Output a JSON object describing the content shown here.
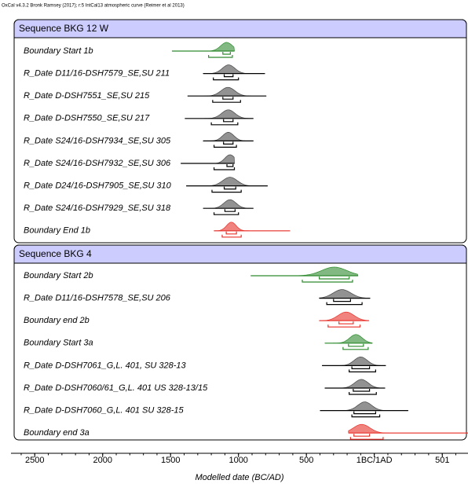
{
  "chart_data": {
    "type": "oxcal",
    "header": "OxCal v4.3.2 Bronk Ramsey (2017); r:5 IntCal13 atmospheric curve (Reimer et al 2013)",
    "xlabel": "Modelled date (BC/AD)",
    "xlim": [
      -2675,
      690
    ],
    "xticks": [
      {
        "value": -2500,
        "label": "2500"
      },
      {
        "value": -2000,
        "label": "2000"
      },
      {
        "value": -1500,
        "label": "1500"
      },
      {
        "value": -1000,
        "label": "1000"
      },
      {
        "value": -500,
        "label": "500"
      },
      {
        "value": 0,
        "label": "1BC/1AD"
      },
      {
        "value": 501,
        "label": "501"
      }
    ],
    "groups": [
      {
        "title": "Sequence BKG 12 W",
        "rows": [
          {
            "label": "Boundary Start 1b",
            "color": "#2e8b2e",
            "line": [
              -1490,
              -1030
            ],
            "hpd95": [
              -1220,
              -1045
            ],
            "hpd68": [
              -1115,
              -1060
            ]
          },
          {
            "label": "R_Date D11/16-DSH7579_SE,SU 211",
            "color": "#444444",
            "line": [
              -1260,
              -805
            ],
            "hpd95": [
              -1185,
              -1000
            ],
            "hpd68": [
              -1105,
              -1040
            ]
          },
          {
            "label": "R_Date D-DSH7551_SE,SU 215",
            "color": "#444444",
            "line": [
              -1375,
              -795
            ],
            "hpd95": [
              -1190,
              -985
            ],
            "hpd68": [
              -1115,
              -1040
            ]
          },
          {
            "label": "R_Date D-DSH7550_SE,SU 217",
            "color": "#444444",
            "line": [
              -1395,
              -890
            ],
            "hpd95": [
              -1200,
              -1005
            ],
            "hpd68": [
              -1110,
              -1040
            ]
          },
          {
            "label": "R_Date S24/16-DSH7934_SE,SU 305",
            "color": "#444444",
            "line": [
              -1260,
              -890
            ],
            "hpd95": [
              -1180,
              -1015
            ],
            "hpd68": [
              -1110,
              -1040
            ]
          },
          {
            "label": "R_Date S24/16-DSH7932_SE,SU 306",
            "color": "#444444",
            "line": [
              -1425,
              -1030
            ],
            "hpd95": [
              -1180,
              -1030
            ],
            "hpd68": [
              -1085,
              -1040
            ]
          },
          {
            "label": "R_Date D24/16-DSH7905_SE,SU 310",
            "color": "#444444",
            "line": [
              -1385,
              -785
            ],
            "hpd95": [
              -1195,
              -980
            ],
            "hpd68": [
              -1105,
              -1020
            ]
          },
          {
            "label": "R_Date S24/16-DSH7929_SE,SU 318",
            "color": "#444444",
            "line": [
              -1260,
              -890
            ],
            "hpd95": [
              -1180,
              -1000
            ],
            "hpd68": [
              -1100,
              -1025
            ]
          },
          {
            "label": "Boundary End 1b",
            "color": "#e8302a",
            "line": [
              -1180,
              -620
            ],
            "hpd95": [
              -1120,
              -980
            ],
            "hpd68": [
              -1090,
              -1015
            ]
          }
        ]
      },
      {
        "title": "Sequence BKG 4",
        "rows": [
          {
            "label": "Boundary Start 2b",
            "color": "#2e8b2e",
            "line": [
              -910,
              -120
            ],
            "hpd95": [
              -530,
              -160
            ],
            "hpd68": [
              -405,
              -185
            ]
          },
          {
            "label": "R_Date D11/16-DSH7578_SE,SU 206",
            "color": "#444444",
            "line": [
              -405,
              -30
            ],
            "hpd95": [
              -350,
              -90
            ],
            "hpd68": [
              -300,
              -175
            ]
          },
          {
            "label": "Boundary end 2b",
            "color": "#e8302a",
            "line": [
              -405,
              -40
            ],
            "hpd95": [
              -340,
              -105
            ],
            "hpd68": [
              -260,
              -155
            ]
          },
          {
            "label": "Boundary Start 3a",
            "color": "#2e8b2e",
            "line": [
              -365,
              -15
            ],
            "hpd95": [
              -230,
              -45
            ],
            "hpd68": [
              -190,
              -80
            ]
          },
          {
            "label": "R_Date D-DSH7061_G,L. 401, SU 328-13",
            "color": "#444444",
            "line": [
              -385,
              85
            ],
            "hpd95": [
              -185,
              10
            ],
            "hpd68": [
              -165,
              -35
            ]
          },
          {
            "label": "R_Date D-DSH7060/61_G,L. 401 US 328-13/15",
            "color": "#444444",
            "line": [
              -365,
              80
            ],
            "hpd95": [
              -185,
              15
            ],
            "hpd68": [
              -155,
              -35
            ]
          },
          {
            "label": "R_Date D-DSH7060_G,L. 401 SU 328-15",
            "color": "#444444",
            "line": [
              -400,
              250
            ],
            "hpd95": [
              -165,
              40
            ],
            "hpd68": [
              -150,
              10
            ]
          },
          {
            "label": "Boundary end 3a",
            "color": "#e8302a",
            "line": [
              -190,
              690
            ],
            "hpd95": [
              -175,
              65
            ],
            "hpd68": [
              -150,
              -35
            ]
          }
        ]
      }
    ]
  }
}
